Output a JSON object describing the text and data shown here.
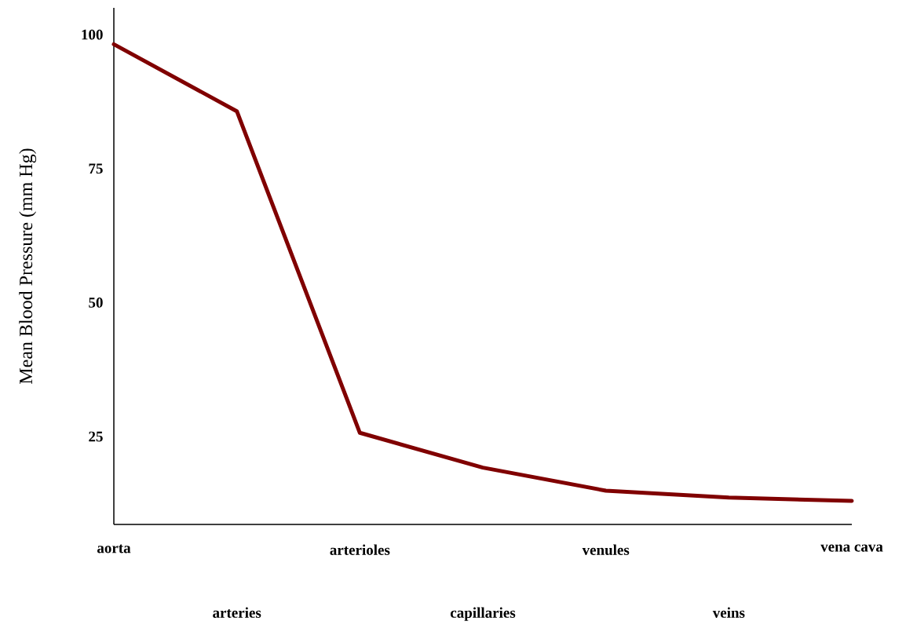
{
  "chart_data": {
    "type": "line",
    "ylabel": "Mean Blood Pressure (mm Hg)",
    "categories": [
      "aorta",
      "arteries",
      "arterioles",
      "capillaries",
      "venules",
      "veins",
      "vena cava"
    ],
    "series": [
      {
        "color": "#800000",
        "values": [
          98.2,
          85.7,
          25.7,
          19.2,
          14.9,
          13.6,
          13.0
        ]
      }
    ],
    "ylim": [
      8.6,
      105
    ],
    "yticks": [
      25,
      50,
      75,
      100
    ],
    "grid": false,
    "marker": "none",
    "line_style": "solid"
  }
}
